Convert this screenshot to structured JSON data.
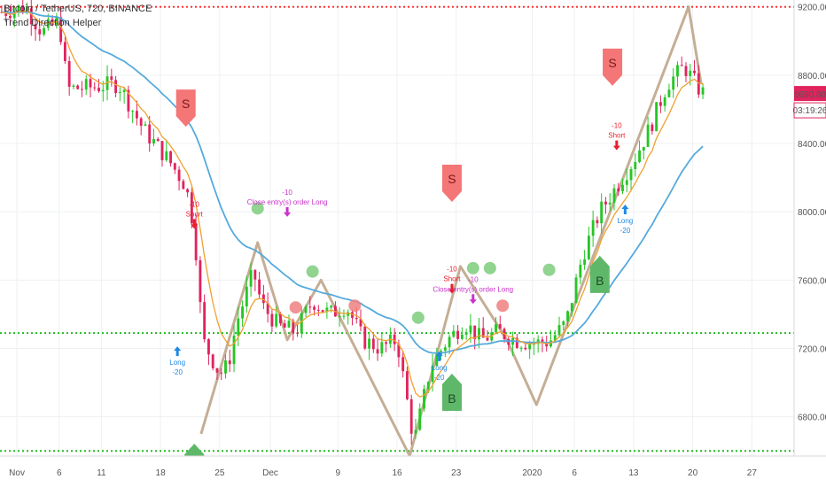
{
  "header": {
    "symbol_line": "Bitcoin / TetherUS, 720, BINANCE",
    "indicator": "Trend Direction Helper"
  },
  "colors": {
    "up": "#26c626",
    "down": "#e0245e",
    "fast_ma": "#f0a030",
    "slow_ma": "#55aadd",
    "zigzag": "#bfa58a",
    "red_level": "#ff3333",
    "green_level": "#22bb22",
    "sell_flag": "#f47676",
    "buy_flag": "#5fb86a",
    "dot_green": "#7ccd7c",
    "dot_red": "#f08080",
    "price_tag": "#e0245e",
    "short_text": "#e8202a",
    "long_text": "#1e88e5",
    "close_text": "#c833c8"
  },
  "chart_data": {
    "type": "candlestick",
    "y_ticks": [
      "9200.00",
      "8800.00",
      "8400.00",
      "8000.00",
      "7600.00",
      "7200.00",
      "6800.00"
    ],
    "y_tick_values": [
      9200,
      8800,
      8400,
      8000,
      7600,
      7200,
      6800
    ],
    "ylim": [
      6570,
      9240
    ],
    "x_ticks": [
      "Nov",
      "6",
      "11",
      "18",
      "25",
      "Dec",
      "9",
      "16",
      "23",
      "2020",
      "6",
      "13",
      "20",
      "27"
    ],
    "x_tick_days": [
      1,
      6,
      11,
      18,
      25,
      31,
      39,
      46,
      53,
      62,
      67,
      74,
      81,
      88
    ],
    "x_range_days": [
      -1,
      93
    ],
    "last_day": 82.5,
    "price_tag": "8690.80",
    "countdown_tag": "03:19:26",
    "price_tag_value": 8690,
    "levels": [
      {
        "value": 9200,
        "color": "red"
      },
      {
        "value": 7290,
        "color": "green"
      },
      {
        "value": 6600,
        "color": "green"
      }
    ],
    "anchors": [
      [
        -0.8,
        9170
      ],
      [
        2,
        9200
      ],
      [
        4,
        9050
      ],
      [
        6,
        9120
      ],
      [
        7,
        8720
      ],
      [
        10,
        8730
      ],
      [
        13,
        8750
      ],
      [
        16,
        8480
      ],
      [
        19,
        8300
      ],
      [
        21,
        8150
      ],
      [
        22,
        7900
      ],
      [
        23,
        7250
      ],
      [
        25,
        7050
      ],
      [
        26,
        7100
      ],
      [
        27,
        7350
      ],
      [
        29,
        7650
      ],
      [
        30,
        7450
      ],
      [
        32,
        7330
      ],
      [
        34,
        7300
      ],
      [
        36,
        7480
      ],
      [
        38,
        7400
      ],
      [
        40,
        7450
      ],
      [
        42,
        7250
      ],
      [
        44,
        7200
      ],
      [
        46,
        7250
      ],
      [
        48,
        6650
      ],
      [
        50,
        7100
      ],
      [
        52,
        7250
      ],
      [
        54,
        7350
      ],
      [
        56,
        7250
      ],
      [
        58,
        7300
      ],
      [
        60,
        7250
      ],
      [
        62,
        7230
      ],
      [
        64,
        7240
      ],
      [
        66,
        7350
      ],
      [
        68,
        7750
      ],
      [
        70,
        8000
      ],
      [
        72,
        8150
      ],
      [
        74,
        8300
      ],
      [
        76,
        8500
      ],
      [
        78,
        8750
      ],
      [
        80,
        8850
      ],
      [
        82,
        8700
      ],
      [
        82.5,
        8690
      ]
    ],
    "zigzag": [
      [
        22.8,
        6700
      ],
      [
        29.5,
        7820
      ],
      [
        33,
        7250
      ],
      [
        37,
        7600
      ],
      [
        47.5,
        6570
      ],
      [
        53.5,
        7680
      ],
      [
        59,
        7250
      ],
      [
        62.5,
        6870
      ],
      [
        80.5,
        9200
      ],
      [
        82,
        8750
      ]
    ],
    "signals": [
      {
        "type": "sell",
        "day": 21,
        "price": 8560,
        "label": "S"
      },
      {
        "type": "buy",
        "day": 22,
        "price": 6580,
        "label": "B"
      },
      {
        "type": "sell",
        "day": 52.5,
        "price": 8120,
        "label": "S"
      },
      {
        "type": "buy",
        "day": 52.5,
        "price": 6990,
        "label": "B"
      },
      {
        "type": "sell",
        "day": 71.5,
        "price": 8800,
        "label": "S"
      },
      {
        "type": "buy",
        "day": 70,
        "price": 7680,
        "label": "B"
      }
    ],
    "dots": [
      {
        "color": "green",
        "day": 29.5,
        "price": 8020
      },
      {
        "color": "green",
        "day": 36,
        "price": 7650
      },
      {
        "color": "red",
        "day": 34,
        "price": 7440
      },
      {
        "color": "red",
        "day": 41,
        "price": 7450
      },
      {
        "color": "green",
        "day": 48.5,
        "price": 7380
      },
      {
        "color": "green",
        "day": 55,
        "price": 7670
      },
      {
        "color": "green",
        "day": 57,
        "price": 7670
      },
      {
        "color": "red",
        "day": 58.5,
        "price": 7450
      },
      {
        "color": "green",
        "day": 64,
        "price": 7660
      }
    ],
    "annotations": [
      {
        "day": 22,
        "price": 8030,
        "lines": [
          "-10",
          "Short"
        ],
        "color": "short",
        "arrow": "down"
      },
      {
        "day": 33,
        "price": 8100,
        "lines": [
          "-10",
          "Close entry(s) order Long"
        ],
        "color": "close",
        "arrow": "down"
      },
      {
        "day": 52.5,
        "price": 7650,
        "lines": [
          "-10",
          "Short"
        ],
        "color": "short",
        "arrow": "down"
      },
      {
        "day": 55,
        "price": 7590,
        "lines": [
          "-10",
          "Close entry(s) order Long"
        ],
        "color": "close",
        "arrow": "down"
      },
      {
        "day": 72,
        "price": 8490,
        "lines": [
          "-10",
          "Short"
        ],
        "color": "short",
        "arrow": "down"
      },
      {
        "day": 20,
        "price": 7150,
        "lines": [
          "Long",
          "-20"
        ],
        "color": "long",
        "arrow": "up"
      },
      {
        "day": 51,
        "price": 7120,
        "lines": [
          "Long",
          "-20"
        ],
        "color": "long",
        "arrow": "up"
      },
      {
        "day": 73,
        "price": 7980,
        "lines": [
          "Long",
          "-20"
        ],
        "color": "long",
        "arrow": "up"
      }
    ]
  }
}
